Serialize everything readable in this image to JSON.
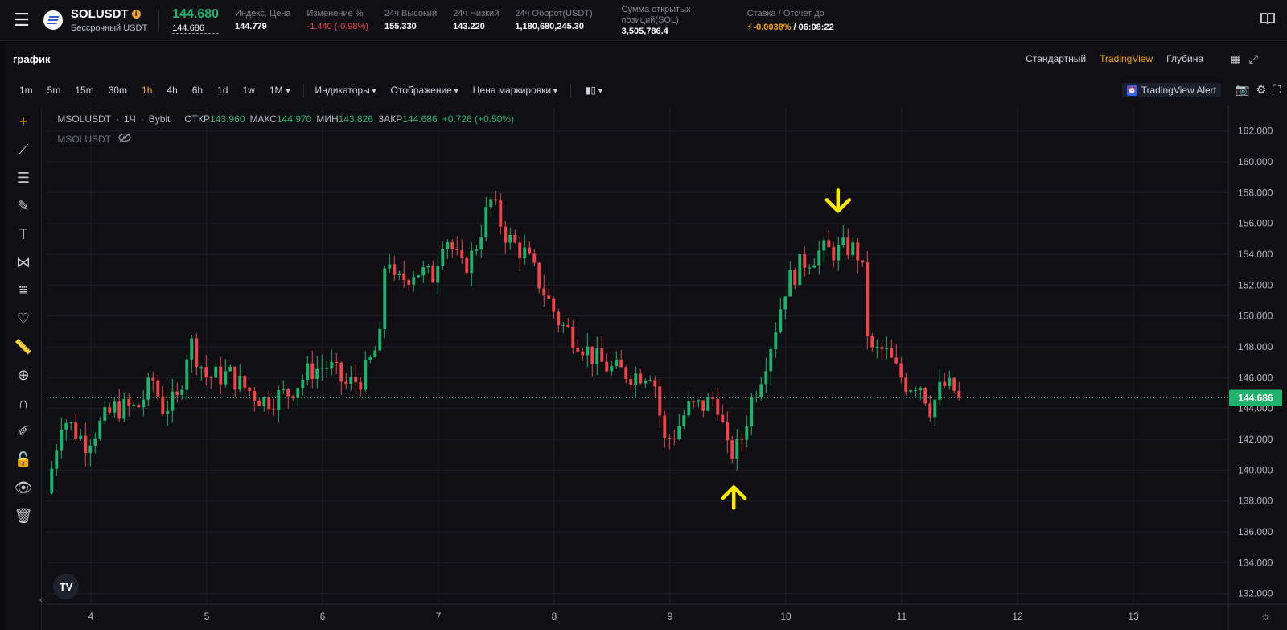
{
  "ticker": {
    "symbol": "SOLUSDT",
    "info_badge": "i",
    "subtitle": "Бессрочный USDT",
    "last_price": "144.680",
    "mark_price": "144.686",
    "stats": [
      {
        "label": "Индекс. Цена",
        "value": "144.779"
      },
      {
        "label": "Изменение %",
        "value": "-1.440 (-0.98%)",
        "color": "#ef454a"
      },
      {
        "label": "24ч Высокий",
        "value": "155.330"
      },
      {
        "label": "24ч Низкий",
        "value": "143.220"
      },
      {
        "label": "24ч Оборот(USDT)",
        "value": "1,180,680,245.30"
      }
    ],
    "open_interest": {
      "label": "Сумма открытых позиций(SOL)",
      "value": "3,505,786.4"
    },
    "funding": {
      "label": "Ставка / Отсчет до",
      "rate": "-0.0038%",
      "countdown": " / 06:08:22"
    }
  },
  "panel": {
    "title": "график",
    "views": [
      "Стандартный",
      "TradingView",
      "Глубина"
    ],
    "active_view": "TradingView"
  },
  "toolbar": {
    "timeframes": [
      "1m",
      "5m",
      "15m",
      "30m",
      "1h",
      "4h",
      "6h",
      "1d",
      "1w",
      "1M"
    ],
    "active_timeframe": "1h",
    "menus": [
      "Индикаторы",
      "Отображение",
      "Цена маркировки"
    ],
    "alert_label": "TradingView Alert"
  },
  "legend": {
    "symbol": ".MSOLUSDT",
    "interval": "1Ч",
    "exchange": "Bybit",
    "open_label": "ОТКР",
    "open": "143.960",
    "high_label": "МАКС",
    "high": "144.970",
    "low_label": "МИН",
    "low": "143.826",
    "close_label": "ЗАКР",
    "close": "144.686",
    "change": "+0.726 (+0.50%)",
    "series_name": ".MSOLUSDT"
  },
  "chart_data": {
    "type": "candlestick",
    "x_ticks": [
      "4",
      "5",
      "6",
      "7",
      "8",
      "9",
      "10",
      "11",
      "12",
      "13"
    ],
    "y_ticks": [
      "162.000",
      "160.000",
      "158.000",
      "156.000",
      "154.000",
      "152.000",
      "150.000",
      "148.000",
      "146.000",
      "144.000",
      "142.000",
      "140.000",
      "138.000",
      "136.000",
      "134.000",
      "132.000"
    ],
    "ylim": [
      131.3,
      163.5
    ],
    "last_price_label": "144.686",
    "last_price": 144.686,
    "up_color": "#20b26c",
    "down_color": "#ef454a",
    "annotations": [
      {
        "type": "arrow-down",
        "day": 10.45,
        "price": 156.8
      },
      {
        "type": "arrow-up",
        "day": 9.55,
        "price": 138.9
      }
    ],
    "anchors_day_price": [
      [
        3.62,
        138.5
      ],
      [
        3.75,
        143.5
      ],
      [
        3.95,
        141.8
      ],
      [
        4.2,
        144.0
      ],
      [
        4.4,
        144.0
      ],
      [
        4.55,
        146.0
      ],
      [
        4.6,
        144.0
      ],
      [
        4.75,
        144.5
      ],
      [
        4.85,
        148.5
      ],
      [
        5.0,
        146.0
      ],
      [
        5.2,
        146.2
      ],
      [
        5.3,
        145.5
      ],
      [
        5.5,
        144.5
      ],
      [
        5.7,
        145.0
      ],
      [
        5.9,
        146.5
      ],
      [
        6.05,
        146.8
      ],
      [
        6.2,
        145.5
      ],
      [
        6.35,
        146.0
      ],
      [
        6.5,
        148.5
      ],
      [
        6.55,
        155.0
      ],
      [
        6.62,
        152.0
      ],
      [
        6.8,
        153.0
      ],
      [
        6.95,
        152.5
      ],
      [
        7.05,
        155.5
      ],
      [
        7.2,
        153.0
      ],
      [
        7.3,
        154.0
      ],
      [
        7.45,
        157.5
      ],
      [
        7.6,
        155.0
      ],
      [
        7.75,
        154.0
      ],
      [
        7.85,
        152.5
      ],
      [
        7.95,
        151.0
      ],
      [
        8.05,
        149.5
      ],
      [
        8.2,
        148.5
      ],
      [
        8.35,
        147.2
      ],
      [
        8.5,
        146.5
      ],
      [
        8.7,
        146.2
      ],
      [
        8.85,
        146.5
      ],
      [
        8.95,
        141.8
      ],
      [
        9.05,
        142.5
      ],
      [
        9.15,
        144.0
      ],
      [
        9.3,
        144.2
      ],
      [
        9.4,
        144.8
      ],
      [
        9.5,
        141.0
      ],
      [
        9.6,
        141.5
      ],
      [
        9.7,
        144.5
      ],
      [
        9.8,
        146.5
      ],
      [
        9.9,
        149.0
      ],
      [
        10.0,
        152.0
      ],
      [
        10.15,
        153.5
      ],
      [
        10.3,
        154.2
      ],
      [
        10.45,
        154.2
      ],
      [
        10.55,
        154.5
      ],
      [
        10.65,
        153.8
      ],
      [
        10.72,
        147.5
      ],
      [
        10.85,
        147.8
      ],
      [
        10.95,
        146.5
      ],
      [
        11.05,
        145.5
      ],
      [
        11.15,
        145.8
      ],
      [
        11.25,
        144.0
      ],
      [
        11.35,
        145.5
      ],
      [
        11.45,
        145.2
      ],
      [
        11.5,
        144.7
      ]
    ]
  }
}
